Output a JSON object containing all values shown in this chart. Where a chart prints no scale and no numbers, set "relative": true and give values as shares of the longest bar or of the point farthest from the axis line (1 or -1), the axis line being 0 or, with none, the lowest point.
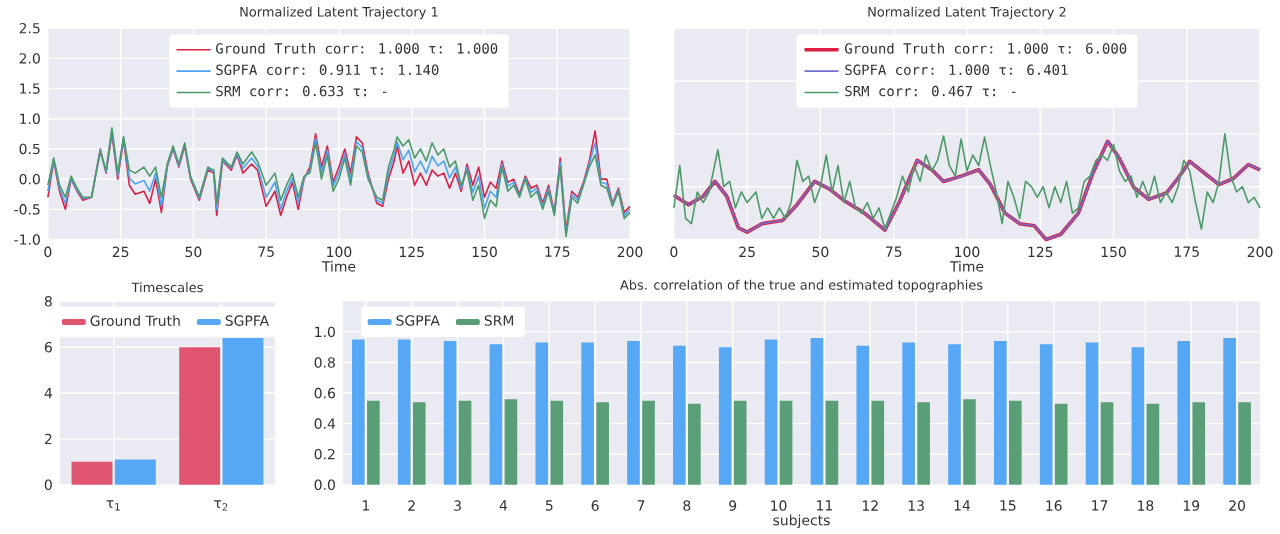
{
  "chart_data": [
    {
      "type": "line",
      "title": "Normalized Latent Trajectory 1",
      "xlabel": "Time",
      "xlim": [
        0,
        200
      ],
      "xticks": [
        0,
        25,
        50,
        75,
        100,
        125,
        150,
        175,
        200
      ],
      "ylim": [
        -1,
        2.5
      ],
      "yticks": [
        {
          "value": -1,
          "label": "-1.0"
        },
        -0.5,
        {
          "value": 0,
          "label": "0.0"
        },
        0.5,
        {
          "value": 1,
          "label": "1.0"
        },
        1.5,
        {
          "value": 2,
          "label": "2.0"
        },
        2.5
      ],
      "grid": true,
      "legend": "top",
      "x": [
        0,
        2,
        4,
        6,
        8,
        10,
        12,
        15,
        18,
        20,
        22,
        24,
        26,
        28,
        30,
        33,
        35,
        37,
        39,
        41,
        43,
        45,
        47,
        49,
        52,
        55,
        57,
        58,
        60,
        63,
        65,
        67,
        70,
        72,
        75,
        78,
        80,
        82,
        84,
        86,
        88,
        90,
        92,
        94,
        96,
        98,
        100,
        102,
        104,
        106,
        108,
        110,
        113,
        115,
        117,
        119,
        120,
        122,
        124,
        126,
        128,
        130,
        132,
        134,
        136,
        138,
        140,
        142,
        144,
        146,
        148,
        150,
        152,
        154,
        156,
        158,
        160,
        162,
        164,
        166,
        168,
        170,
        172,
        174,
        176,
        178,
        180,
        182,
        184,
        186,
        188,
        190,
        192,
        194,
        196,
        198,
        200
      ],
      "series": [
        {
          "name": "Ground Truth corr: 1.000 τ: 1.000",
          "color": "#dc1f43",
          "values": [
            -0.3,
            0.3,
            -0.2,
            -0.5,
            0.0,
            -0.2,
            -0.35,
            -0.3,
            0.5,
            0.1,
            0.75,
            0.0,
            0.65,
            -0.1,
            -0.25,
            -0.2,
            -0.4,
            0.0,
            -0.55,
            0.2,
            0.5,
            0.2,
            0.55,
            0.0,
            -0.35,
            0.15,
            0.1,
            -0.6,
            0.3,
            0.15,
            0.4,
            0.1,
            0.25,
            0.15,
            -0.45,
            -0.2,
            -0.6,
            -0.3,
            -0.05,
            -0.5,
            0.0,
            0.2,
            0.75,
            0.2,
            0.55,
            -0.05,
            0.2,
            0.5,
            0.1,
            0.7,
            0.6,
            0.1,
            -0.4,
            -0.45,
            0.0,
            0.3,
            0.55,
            0.1,
            0.3,
            -0.1,
            0.1,
            -0.1,
            0.15,
            0.05,
            0.1,
            -0.15,
            0.1,
            -0.2,
            0.25,
            -0.1,
            0.2,
            -0.3,
            -0.05,
            -0.15,
            0.3,
            -0.05,
            0.0,
            -0.25,
            0.05,
            -0.15,
            -0.1,
            -0.4,
            -0.1,
            -0.55,
            0.35,
            -0.85,
            -0.2,
            -0.3,
            -0.05,
            0.3,
            0.8,
            0.0,
            0.0,
            -0.4,
            -0.15,
            -0.55,
            -0.45
          ]
        },
        {
          "name": "SGPFA corr: 0.911 τ: 1.140",
          "color": "#4da3f5",
          "values": [
            -0.2,
            0.32,
            -0.15,
            -0.4,
            0.02,
            -0.18,
            -0.32,
            -0.3,
            0.48,
            0.12,
            0.8,
            0.05,
            0.68,
            0.02,
            -0.08,
            -0.02,
            -0.2,
            0.1,
            -0.45,
            0.22,
            0.52,
            0.22,
            0.58,
            0.02,
            -0.32,
            0.18,
            0.12,
            -0.5,
            0.32,
            0.18,
            0.42,
            0.18,
            0.35,
            0.22,
            -0.3,
            -0.05,
            -0.5,
            -0.2,
            0.02,
            -0.4,
            0.02,
            0.15,
            0.68,
            0.1,
            0.48,
            -0.12,
            0.1,
            0.42,
            0.0,
            0.62,
            0.52,
            0.05,
            -0.35,
            -0.4,
            0.1,
            0.4,
            0.62,
            0.32,
            0.48,
            0.12,
            0.3,
            0.1,
            0.38,
            0.22,
            0.3,
            0.02,
            0.2,
            -0.15,
            0.2,
            -0.22,
            0.05,
            -0.48,
            -0.2,
            -0.3,
            0.25,
            -0.12,
            -0.05,
            -0.28,
            0.02,
            -0.22,
            -0.15,
            -0.45,
            -0.15,
            -0.58,
            0.28,
            -0.9,
            -0.25,
            -0.35,
            -0.08,
            0.25,
            0.6,
            -0.05,
            -0.08,
            -0.42,
            -0.18,
            -0.6,
            -0.5
          ]
        },
        {
          "name": "SRM corr: 0.633 τ: -",
          "color": "#4c9a68",
          "values": [
            -0.1,
            0.35,
            -0.1,
            -0.3,
            0.05,
            -0.15,
            -0.3,
            -0.3,
            0.45,
            0.15,
            0.85,
            0.1,
            0.7,
            0.15,
            0.1,
            0.2,
            0.05,
            0.2,
            -0.3,
            0.25,
            0.55,
            0.25,
            0.6,
            0.05,
            -0.3,
            0.2,
            0.15,
            -0.4,
            0.35,
            0.2,
            0.45,
            0.25,
            0.45,
            0.3,
            -0.1,
            0.1,
            -0.35,
            -0.1,
            0.1,
            -0.3,
            0.05,
            0.1,
            0.6,
            0.0,
            0.4,
            -0.2,
            0.0,
            0.35,
            -0.1,
            0.55,
            0.45,
            0.0,
            -0.3,
            -0.35,
            0.2,
            0.5,
            0.7,
            0.55,
            0.65,
            0.35,
            0.5,
            0.3,
            0.6,
            0.4,
            0.5,
            0.2,
            0.3,
            -0.1,
            0.15,
            -0.35,
            -0.1,
            -0.65,
            -0.35,
            -0.45,
            0.2,
            -0.2,
            -0.1,
            -0.3,
            0.0,
            -0.3,
            -0.2,
            -0.5,
            -0.2,
            -0.6,
            0.2,
            -0.95,
            -0.3,
            -0.4,
            -0.1,
            0.2,
            0.4,
            -0.1,
            -0.15,
            -0.45,
            -0.2,
            -0.65,
            -0.55
          ]
        }
      ]
    },
    {
      "type": "line",
      "title": "Normalized Latent Trajectory 2",
      "xlabel": "Time",
      "xlim": [
        0,
        200
      ],
      "xticks": [
        0,
        25,
        50,
        75,
        100,
        125,
        150,
        175,
        200
      ],
      "relative": true,
      "tick_labels": "x",
      "grid": true,
      "legend": "top",
      "series": [
        {
          "name": "Ground Truth corr: 1.000 τ: 6.000",
          "color": "#dc1f43",
          "x": [
            0,
            5,
            10,
            14,
            18,
            22,
            25,
            30,
            37,
            42,
            48,
            53,
            58,
            65,
            72,
            77,
            83,
            88,
            92,
            98,
            104,
            108,
            113,
            118,
            123,
            127,
            132,
            138,
            143,
            148,
            152,
            157,
            162,
            168,
            172,
            176,
            181,
            186,
            191,
            196,
            200
          ],
          "values": [
            0.42,
            0.33,
            0.41,
            0.55,
            0.41,
            0.11,
            0.07,
            0.15,
            0.18,
            0.33,
            0.55,
            0.48,
            0.37,
            0.25,
            0.09,
            0.36,
            0.75,
            0.66,
            0.55,
            0.6,
            0.66,
            0.52,
            0.25,
            0.15,
            0.13,
            0.0,
            0.05,
            0.25,
            0.63,
            0.93,
            0.77,
            0.49,
            0.38,
            0.44,
            0.58,
            0.74,
            0.63,
            0.52,
            0.58,
            0.71,
            0.66
          ]
        },
        {
          "name": "SGPFA corr: 1.000 τ: 6.401",
          "color": "#6f6fd0",
          "x": [
            0,
            5,
            10,
            14,
            18,
            22,
            25,
            30,
            37,
            42,
            48,
            53,
            58,
            65,
            72,
            77,
            83,
            88,
            92,
            98,
            104,
            108,
            113,
            118,
            123,
            127,
            132,
            138,
            143,
            148,
            152,
            157,
            162,
            168,
            172,
            176,
            181,
            186,
            191,
            196,
            200
          ],
          "values": [
            0.42,
            0.33,
            0.41,
            0.55,
            0.41,
            0.11,
            0.07,
            0.15,
            0.18,
            0.33,
            0.55,
            0.48,
            0.37,
            0.25,
            0.09,
            0.36,
            0.75,
            0.66,
            0.55,
            0.6,
            0.66,
            0.52,
            0.25,
            0.15,
            0.13,
            0.0,
            0.05,
            0.25,
            0.63,
            0.93,
            0.77,
            0.49,
            0.38,
            0.44,
            0.58,
            0.74,
            0.63,
            0.52,
            0.58,
            0.71,
            0.66
          ]
        },
        {
          "name": "SRM corr: 0.467 τ: -",
          "color": "#4c9a68",
          "x": [
            0,
            2,
            4,
            6,
            8,
            10,
            12,
            15,
            17,
            19,
            21,
            23,
            25,
            28,
            30,
            32,
            34,
            36,
            38,
            40,
            42,
            44,
            46,
            48,
            50,
            52,
            54,
            56,
            58,
            60,
            62,
            64,
            66,
            68,
            70,
            72,
            74,
            76,
            78,
            80,
            82,
            84,
            86,
            88,
            90,
            92,
            94,
            96,
            98,
            100,
            102,
            104,
            106,
            108,
            110,
            112,
            114,
            116,
            118,
            120,
            122,
            124,
            126,
            128,
            130,
            132,
            134,
            136,
            138,
            140,
            142,
            144,
            146,
            148,
            150,
            152,
            154,
            156,
            158,
            160,
            162,
            164,
            166,
            168,
            170,
            172,
            174,
            176,
            178,
            180,
            182,
            184,
            186,
            188,
            190,
            192,
            194,
            196,
            198,
            200
          ],
          "values": [
            0.3,
            0.7,
            0.2,
            0.15,
            0.45,
            0.35,
            0.45,
            0.85,
            0.5,
            0.55,
            0.3,
            0.45,
            0.35,
            0.45,
            0.2,
            0.3,
            0.2,
            0.3,
            0.2,
            0.35,
            0.75,
            0.55,
            0.6,
            0.35,
            0.5,
            0.8,
            0.45,
            0.7,
            0.35,
            0.55,
            0.3,
            0.25,
            0.35,
            0.2,
            0.3,
            0.1,
            0.25,
            0.4,
            0.6,
            0.45,
            0.7,
            0.55,
            0.8,
            0.65,
            0.75,
            0.98,
            0.7,
            0.6,
            0.95,
            0.65,
            0.8,
            0.7,
            0.97,
            0.7,
            0.45,
            0.15,
            0.55,
            0.4,
            0.2,
            0.55,
            0.5,
            0.4,
            0.5,
            0.3,
            0.5,
            0.35,
            0.55,
            0.25,
            0.3,
            0.55,
            0.6,
            0.75,
            0.8,
            0.75,
            0.9,
            0.65,
            0.55,
            0.6,
            0.4,
            0.55,
            0.4,
            0.6,
            0.35,
            0.45,
            0.35,
            0.5,
            0.75,
            0.65,
            0.35,
            0.1,
            0.45,
            0.35,
            0.55,
            1.0,
            0.6,
            0.45,
            0.5,
            0.35,
            0.4,
            0.3
          ]
        }
      ]
    },
    {
      "type": "bar",
      "title": "Timescales",
      "categories": [
        "τ$_{1}$",
        "τ$_{2}$"
      ],
      "ylim": [
        0,
        8
      ],
      "yticks": [
        0,
        2,
        4,
        6,
        8
      ],
      "grid": true,
      "legend": "top",
      "series": [
        {
          "name": "Ground Truth",
          "color": "#e05570",
          "values": [
            1.0,
            6.0
          ]
        },
        {
          "name": "SGPFA",
          "color": "#56a8f5",
          "values": [
            1.1,
            6.4
          ]
        }
      ]
    },
    {
      "type": "bar",
      "title": "Abs. correlation of the true and estimated topographies",
      "xlabel": "subjects",
      "categories": [
        "1",
        "2",
        "3",
        "4",
        "5",
        "6",
        "7",
        "8",
        "9",
        "10",
        "11",
        "12",
        "13",
        "14",
        "15",
        "16",
        "17",
        "18",
        "19",
        "20"
      ],
      "ylim": [
        0,
        1.2
      ],
      "yticks": [
        {
          "value": 0,
          "label": "0.0"
        },
        0.2,
        0.4,
        0.6,
        0.8,
        {
          "value": 1,
          "label": "1.0"
        }
      ],
      "grid": true,
      "legend": "top left",
      "series": [
        {
          "name": "SGPFA",
          "color": "#56a8f5",
          "values": [
            0.95,
            0.95,
            0.94,
            0.92,
            0.93,
            0.93,
            0.94,
            0.91,
            0.9,
            0.95,
            0.96,
            0.91,
            0.93,
            0.92,
            0.94,
            0.92,
            0.93,
            0.9,
            0.94,
            0.96
          ]
        },
        {
          "name": "SRM",
          "color": "#5a9e78",
          "values": [
            0.55,
            0.54,
            0.55,
            0.56,
            0.55,
            0.54,
            0.55,
            0.53,
            0.55,
            0.55,
            0.55,
            0.55,
            0.54,
            0.56,
            0.55,
            0.53,
            0.54,
            0.53,
            0.54,
            0.54
          ]
        }
      ]
    }
  ]
}
